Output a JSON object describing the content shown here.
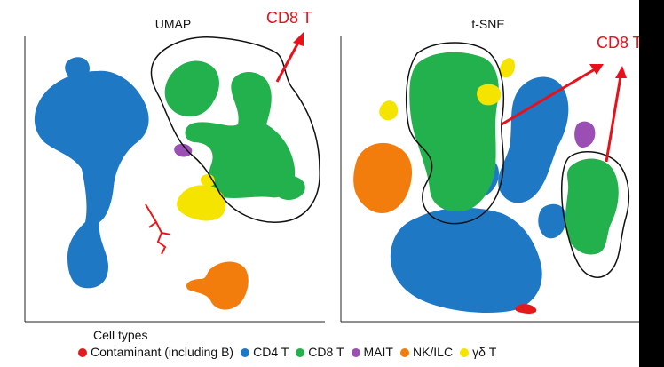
{
  "chart_data": [
    {
      "type": "scatter",
      "title": "UMAP",
      "annotations": [
        {
          "text": "CD8 T",
          "color": "#e8101a"
        }
      ]
    },
    {
      "type": "scatter",
      "title": "t-SNE",
      "annotations": [
        {
          "text": "CD8 T",
          "color": "#e8101a"
        }
      ]
    }
  ],
  "legend": {
    "title": "Cell types",
    "items": [
      {
        "label": "Contaminant (including B)",
        "color": "#e31a1c"
      },
      {
        "label": "CD4 T",
        "color": "#1f78c4"
      },
      {
        "label": "CD8 T",
        "color": "#22b14c"
      },
      {
        "label": "MAIT",
        "color": "#9b4fb4"
      },
      {
        "label": "NK/ILC",
        "color": "#f27d0c"
      },
      {
        "label": "γδ T",
        "color": "#f5e400"
      }
    ]
  }
}
